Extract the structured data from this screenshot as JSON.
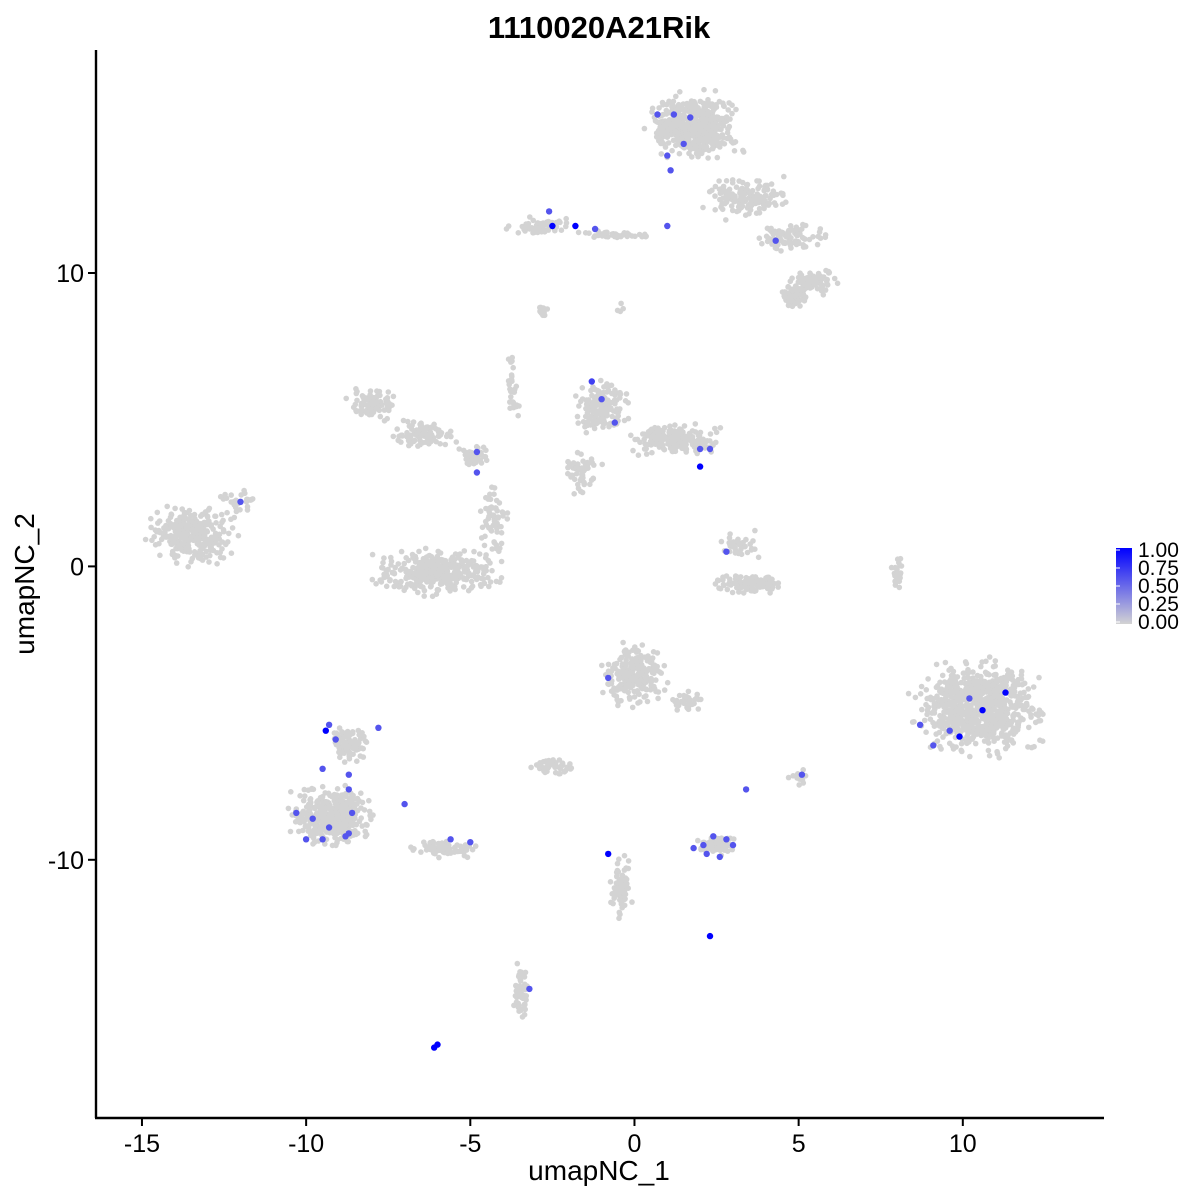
{
  "chart_data": {
    "type": "scatter",
    "title": "1110020A21Rik",
    "xlabel": "umapNC_1",
    "ylabel": "umapNC_2",
    "xlim": [
      -16.4,
      14.3
    ],
    "ylim": [
      -18.8,
      17.6
    ],
    "x_ticks": [
      -15,
      -10,
      -5,
      0,
      5,
      10
    ],
    "x_tick_labels": [
      "-15",
      "-10",
      "-5",
      "0",
      "5",
      "10"
    ],
    "y_ticks": [
      -10,
      0,
      10
    ],
    "y_tick_labels": [
      "-10",
      "0",
      "10"
    ],
    "grid": false,
    "legend_position": "right",
    "color_scale": {
      "low": "#d3d3d3",
      "high": "#0000ff",
      "range": [
        0,
        1
      ],
      "breaks": [
        "1.00",
        "0.75",
        "0.50",
        "0.25",
        "0.00"
      ]
    },
    "background_clusters": [
      {
        "cx": -13.5,
        "cy": 1.1,
        "rx": 1.5,
        "ry": 1.1,
        "n": 320
      },
      {
        "cx": -12.0,
        "cy": 2.2,
        "rx": 0.7,
        "ry": 0.5,
        "n": 25
      },
      {
        "cx": -8.0,
        "cy": 5.5,
        "rx": 0.9,
        "ry": 0.6,
        "n": 90
      },
      {
        "cx": -6.5,
        "cy": 4.5,
        "rx": 1.2,
        "ry": 0.6,
        "n": 90
      },
      {
        "cx": -4.8,
        "cy": 3.7,
        "rx": 0.6,
        "ry": 0.5,
        "n": 40
      },
      {
        "cx": -6.0,
        "cy": -0.2,
        "rx": 2.2,
        "ry": 0.9,
        "n": 380
      },
      {
        "cx": -4.3,
        "cy": 1.5,
        "rx": 0.5,
        "ry": 1.4,
        "n": 60
      },
      {
        "cx": -3.7,
        "cy": 6.0,
        "rx": 0.3,
        "ry": 1.4,
        "n": 30
      },
      {
        "cx": -1.0,
        "cy": 5.5,
        "rx": 0.9,
        "ry": 1.1,
        "n": 170
      },
      {
        "cx": 1.2,
        "cy": 4.3,
        "rx": 1.6,
        "ry": 0.6,
        "n": 210
      },
      {
        "cx": -1.6,
        "cy": 3.2,
        "rx": 0.7,
        "ry": 0.9,
        "n": 50
      },
      {
        "cx": 3.5,
        "cy": -0.6,
        "rx": 1.2,
        "ry": 0.4,
        "n": 120
      },
      {
        "cx": 3.2,
        "cy": 0.7,
        "rx": 0.7,
        "ry": 0.6,
        "n": 40
      },
      {
        "cx": 1.8,
        "cy": 15.0,
        "rx": 1.6,
        "ry": 1.3,
        "n": 520
      },
      {
        "cx": 3.4,
        "cy": 12.6,
        "rx": 1.5,
        "ry": 0.8,
        "n": 160
      },
      {
        "cx": 4.8,
        "cy": 11.2,
        "rx": 1.1,
        "ry": 0.6,
        "n": 90
      },
      {
        "cx": 5.5,
        "cy": 9.7,
        "rx": 0.9,
        "ry": 0.5,
        "n": 90
      },
      {
        "cx": 4.9,
        "cy": 9.2,
        "rx": 0.5,
        "ry": 0.5,
        "n": 60
      },
      {
        "cx": -2.8,
        "cy": 11.6,
        "rx": 1.2,
        "ry": 0.3,
        "n": 70
      },
      {
        "cx": -0.5,
        "cy": 11.3,
        "rx": 1.5,
        "ry": 0.15,
        "n": 40
      },
      {
        "cx": -2.8,
        "cy": 8.7,
        "rx": 0.3,
        "ry": 0.2,
        "n": 15
      },
      {
        "cx": 10.5,
        "cy": -4.8,
        "rx": 2.2,
        "ry": 1.8,
        "n": 820
      },
      {
        "cx": 0.0,
        "cy": -3.7,
        "rx": 1.2,
        "ry": 1.2,
        "n": 230
      },
      {
        "cx": 1.6,
        "cy": -4.6,
        "rx": 0.7,
        "ry": 0.5,
        "n": 40
      },
      {
        "cx": -2.5,
        "cy": -6.8,
        "rx": 0.7,
        "ry": 0.3,
        "n": 50
      },
      {
        "cx": 2.5,
        "cy": -9.5,
        "rx": 0.7,
        "ry": 0.35,
        "n": 80
      },
      {
        "cx": 5.0,
        "cy": -7.2,
        "rx": 0.3,
        "ry": 0.3,
        "n": 20
      },
      {
        "cx": -9.2,
        "cy": -8.5,
        "rx": 1.4,
        "ry": 1.2,
        "n": 430
      },
      {
        "cx": -8.7,
        "cy": -6.0,
        "rx": 0.7,
        "ry": 0.8,
        "n": 90
      },
      {
        "cx": -5.8,
        "cy": -9.6,
        "rx": 1.2,
        "ry": 0.4,
        "n": 80
      },
      {
        "cx": -0.4,
        "cy": -11.0,
        "rx": 0.4,
        "ry": 1.3,
        "n": 70
      },
      {
        "cx": -3.4,
        "cy": -14.5,
        "rx": 0.3,
        "ry": 1.0,
        "n": 60
      },
      {
        "cx": 8.0,
        "cy": -0.2,
        "rx": 0.2,
        "ry": 1.0,
        "n": 25
      },
      {
        "cx": -0.5,
        "cy": 8.8,
        "rx": 0.2,
        "ry": 0.2,
        "n": 4
      }
    ],
    "expressed_points": [
      {
        "x": -2.6,
        "y": 12.1,
        "v": 0.6
      },
      {
        "x": -2.5,
        "y": 11.6,
        "v": 1.0
      },
      {
        "x": -1.8,
        "y": 11.6,
        "v": 1.0
      },
      {
        "x": -1.2,
        "y": 11.5,
        "v": 0.6
      },
      {
        "x": 0.7,
        "y": 15.4,
        "v": 0.6
      },
      {
        "x": 1.2,
        "y": 15.4,
        "v": 0.6
      },
      {
        "x": 1.7,
        "y": 15.3,
        "v": 0.6
      },
      {
        "x": 1.0,
        "y": 14.0,
        "v": 0.6
      },
      {
        "x": 1.5,
        "y": 14.4,
        "v": 0.6
      },
      {
        "x": 1.1,
        "y": 13.5,
        "v": 0.6
      },
      {
        "x": 1.0,
        "y": 11.6,
        "v": 0.6
      },
      {
        "x": 4.3,
        "y": 11.1,
        "v": 0.6
      },
      {
        "x": -1.3,
        "y": 6.3,
        "v": 0.7
      },
      {
        "x": -1.0,
        "y": 5.7,
        "v": 0.6
      },
      {
        "x": -0.6,
        "y": 4.9,
        "v": 0.6
      },
      {
        "x": 2.0,
        "y": 4.0,
        "v": 0.6
      },
      {
        "x": 2.3,
        "y": 4.0,
        "v": 0.6
      },
      {
        "x": 2.0,
        "y": 3.4,
        "v": 1.0
      },
      {
        "x": -4.8,
        "y": 3.9,
        "v": 0.6
      },
      {
        "x": -4.8,
        "y": 3.2,
        "v": 0.6
      },
      {
        "x": 2.8,
        "y": 0.5,
        "v": 0.6
      },
      {
        "x": -12.0,
        "y": 2.2,
        "v": 0.6
      },
      {
        "x": 11.3,
        "y": -4.3,
        "v": 1.0
      },
      {
        "x": 10.6,
        "y": -4.9,
        "v": 1.0
      },
      {
        "x": 10.2,
        "y": -4.5,
        "v": 0.6
      },
      {
        "x": 9.9,
        "y": -5.8,
        "v": 1.0
      },
      {
        "x": 9.6,
        "y": -5.6,
        "v": 0.6
      },
      {
        "x": 9.1,
        "y": -6.1,
        "v": 0.6
      },
      {
        "x": 8.7,
        "y": -5.4,
        "v": 0.6
      },
      {
        "x": -0.8,
        "y": -3.8,
        "v": 0.6
      },
      {
        "x": 3.4,
        "y": -7.6,
        "v": 0.6
      },
      {
        "x": 5.1,
        "y": -7.1,
        "v": 0.6
      },
      {
        "x": 1.8,
        "y": -9.6,
        "v": 0.6
      },
      {
        "x": 2.1,
        "y": -9.5,
        "v": 0.6
      },
      {
        "x": 2.2,
        "y": -9.8,
        "v": 0.6
      },
      {
        "x": 2.6,
        "y": -9.9,
        "v": 0.6
      },
      {
        "x": 2.8,
        "y": -9.3,
        "v": 0.6
      },
      {
        "x": 3.0,
        "y": -9.5,
        "v": 0.6
      },
      {
        "x": 2.4,
        "y": -9.2,
        "v": 0.6
      },
      {
        "x": -0.8,
        "y": -9.8,
        "v": 1.0
      },
      {
        "x": 2.3,
        "y": -12.6,
        "v": 1.0
      },
      {
        "x": -9.4,
        "y": -5.6,
        "v": 1.0
      },
      {
        "x": -9.3,
        "y": -5.4,
        "v": 0.6
      },
      {
        "x": -9.1,
        "y": -5.9,
        "v": 0.6
      },
      {
        "x": -7.8,
        "y": -5.5,
        "v": 0.6
      },
      {
        "x": -9.5,
        "y": -6.9,
        "v": 0.6
      },
      {
        "x": -8.7,
        "y": -7.1,
        "v": 0.6
      },
      {
        "x": -8.7,
        "y": -7.6,
        "v": 0.6
      },
      {
        "x": -7.0,
        "y": -8.1,
        "v": 0.6
      },
      {
        "x": -10.3,
        "y": -8.4,
        "v": 0.6
      },
      {
        "x": -9.8,
        "y": -8.6,
        "v": 0.6
      },
      {
        "x": -9.3,
        "y": -8.9,
        "v": 0.6
      },
      {
        "x": -8.6,
        "y": -8.4,
        "v": 0.6
      },
      {
        "x": -8.7,
        "y": -9.1,
        "v": 0.6
      },
      {
        "x": -10.0,
        "y": -9.3,
        "v": 0.6
      },
      {
        "x": -9.5,
        "y": -9.3,
        "v": 0.6
      },
      {
        "x": -8.8,
        "y": -9.2,
        "v": 0.6
      },
      {
        "x": -5.6,
        "y": -9.3,
        "v": 0.6
      },
      {
        "x": -5.0,
        "y": -9.4,
        "v": 0.6
      },
      {
        "x": -3.2,
        "y": -14.4,
        "v": 0.6
      },
      {
        "x": -6.0,
        "y": -16.3,
        "v": 1.0
      },
      {
        "x": -6.1,
        "y": -16.4,
        "v": 1.0
      }
    ]
  }
}
